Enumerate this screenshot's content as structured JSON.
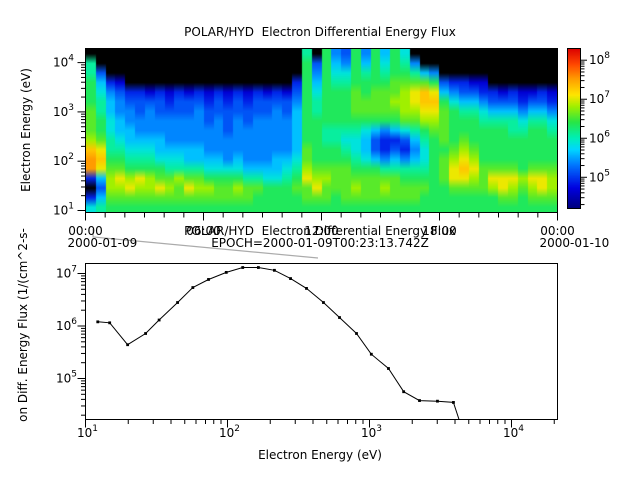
{
  "chart_data": [
    {
      "type": "heatmap",
      "title": "POLAR/HYD  Electron Differential Energy Flux",
      "ylabel": "Electron Energy (eV)",
      "tick_base": "10",
      "y_tick_exponents": [
        1,
        2,
        3,
        4
      ],
      "ylim_log": [
        1.0,
        4.3
      ],
      "x_range_hours": [
        0,
        24
      ],
      "x_ticks": [
        {
          "hour": 0,
          "label": "00:00",
          "date": "2000-01-09"
        },
        {
          "hour": 6,
          "label": "06:00"
        },
        {
          "hour": 12,
          "label": "12:00"
        },
        {
          "hour": 18,
          "label": "18:00"
        },
        {
          "hour": 24,
          "label": "00:00",
          "date": "2000-01-10"
        }
      ],
      "colorbar": {
        "tick_exponents": [
          5,
          6,
          7,
          8
        ],
        "range_log": [
          4.2,
          8.3
        ]
      },
      "value_encoding": {
        "chars": "0123456789abcdef",
        "logflux_min": 4.4,
        "logflux_step": 0.24,
        "no_data_char": ".",
        "no_data_color": "#000000"
      },
      "colormap_stops": [
        [
          4.2,
          "#000080"
        ],
        [
          4.7,
          "#0000e0"
        ],
        [
          5.3,
          "#0078ff"
        ],
        [
          5.7,
          "#00d8ff"
        ],
        [
          6.0,
          "#00f0b4"
        ],
        [
          6.4,
          "#28e646"
        ],
        [
          6.8,
          "#a0f000"
        ],
        [
          7.1,
          "#ffe600"
        ],
        [
          7.5,
          "#ffa000"
        ],
        [
          7.9,
          "#ff4600"
        ],
        [
          8.3,
          "#dc0000"
        ]
      ],
      "grid_rows_top_to_bottom_logE_4p3_to_1": [
        "......................7.843848586...............",
        "7.....................838548586874..............",
        "73....................84866878788754............",
        "8521.................28587788889999832211.......",
        "86432212121212121212138688898999abcb543322121121",
        "8754333323332323233334878889999aabcc865543332332",
        "97544343333433333334358788899999aabb987765554554",
        "9865444444443434344445888888888899aa988877776776",
        "986554444444443444444588777765456789988888877887",
        "a97655554444444444444588776653223578989888888888",
        "cb776665555544444444459888765323246889a988888888",
        "dc88777666555545444556988887654545689aba88888888",
        "db99888877776666555567a99998887777789bcb99998999",
        "25ababa99a998888776678baa999999988889bba9bbbabba",
        ".3aabaaba9baa99a9988899b999a99a9999889999aba9aba",
        "259999999999999998888899989999999988888888998999",
        "678888888888888888888888888888888888888888888888"
      ]
    },
    {
      "type": "line",
      "title": "POLAR/HYD  Electron Differential Energy Flux",
      "subtitle": "EPOCH=2000-01-09T00:23:13.742Z",
      "xlabel": "Electron Energy (eV)",
      "ylabel": "on Diff. Energy Flux (1/(cm^2-s-",
      "tick_base": "10",
      "x_tick_exponents": [
        1,
        2,
        3,
        4
      ],
      "y_tick_exponents": [
        5,
        6,
        7
      ],
      "xlim_log": [
        1.0,
        4.32
      ],
      "ylim_log": [
        4.21,
        7.19
      ],
      "marker": "square",
      "line_color": "#000000",
      "points": [
        [
          12.2,
          1200000
        ],
        [
          14.8,
          1150000
        ],
        [
          19.8,
          440000
        ],
        [
          26.5,
          720000
        ],
        [
          33,
          1300000
        ],
        [
          44.5,
          2800000
        ],
        [
          57,
          5400000
        ],
        [
          73.5,
          7700000
        ],
        [
          98,
          10500000
        ],
        [
          128,
          13000000
        ],
        [
          165,
          13000000
        ],
        [
          214,
          11500000
        ],
        [
          278,
          8000000
        ],
        [
          360,
          5200000
        ],
        [
          474,
          2800000
        ],
        [
          615,
          1450000
        ],
        [
          810,
          720000
        ],
        [
          1030,
          290000
        ],
        [
          1360,
          155000
        ],
        [
          1740,
          56000
        ],
        [
          2250,
          38000
        ],
        [
          3010,
          37000
        ],
        [
          3900,
          35000
        ],
        [
          4600,
          9000
        ]
      ]
    }
  ],
  "slice_indicator": {
    "color": "#ababab"
  }
}
